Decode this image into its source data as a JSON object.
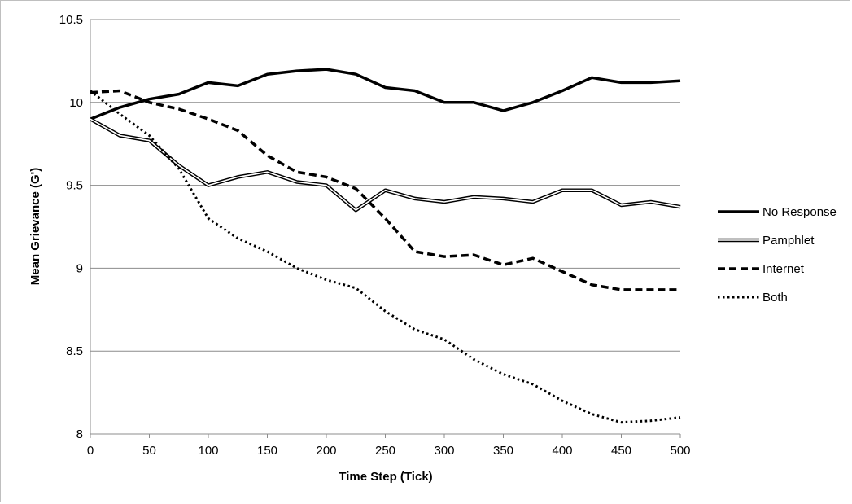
{
  "chart_data": {
    "type": "line",
    "xlabel": "Time Step (Tick)",
    "ylabel": "Mean Grievance (G')",
    "xlim": [
      0,
      500
    ],
    "ylim": [
      8,
      10.5
    ],
    "x_ticks": [
      "0",
      "50",
      "100",
      "150",
      "200",
      "250",
      "300",
      "350",
      "400",
      "450",
      "500"
    ],
    "y_ticks": [
      "8",
      "8.5",
      "9",
      "9.5",
      "10",
      "10.5"
    ],
    "grid": "horizontal",
    "legend_position": "right",
    "x": [
      0,
      25,
      50,
      75,
      100,
      125,
      150,
      175,
      200,
      225,
      250,
      275,
      300,
      325,
      350,
      375,
      400,
      425,
      450,
      475,
      500
    ],
    "series": [
      {
        "name": "No Response",
        "style": "solid-thick",
        "color": "#000000",
        "values": [
          9.9,
          9.97,
          10.02,
          10.05,
          10.12,
          10.1,
          10.17,
          10.19,
          10.2,
          10.17,
          10.09,
          10.07,
          10.0,
          10.0,
          9.95,
          10.0,
          10.07,
          10.15,
          10.12,
          10.12,
          10.13
        ]
      },
      {
        "name": "Pamphlet",
        "style": "double",
        "color": "#000000",
        "values": [
          9.9,
          9.8,
          9.77,
          9.62,
          9.5,
          9.55,
          9.58,
          9.52,
          9.5,
          9.35,
          9.47,
          9.42,
          9.4,
          9.43,
          9.42,
          9.4,
          9.47,
          9.47,
          9.38,
          9.4,
          9.37
        ]
      },
      {
        "name": "Internet",
        "style": "dashed",
        "color": "#000000",
        "values": [
          10.06,
          10.07,
          10.0,
          9.96,
          9.9,
          9.83,
          9.68,
          9.58,
          9.55,
          9.48,
          9.3,
          9.1,
          9.07,
          9.08,
          9.02,
          9.06,
          8.98,
          8.9,
          8.87,
          8.87,
          8.87
        ]
      },
      {
        "name": "Both",
        "style": "dotted",
        "color": "#000000",
        "values": [
          10.07,
          9.93,
          9.8,
          9.6,
          9.3,
          9.18,
          9.1,
          9.0,
          8.93,
          8.88,
          8.74,
          8.63,
          8.57,
          8.45,
          8.36,
          8.3,
          8.2,
          8.12,
          8.07,
          8.08,
          8.1
        ]
      }
    ]
  }
}
